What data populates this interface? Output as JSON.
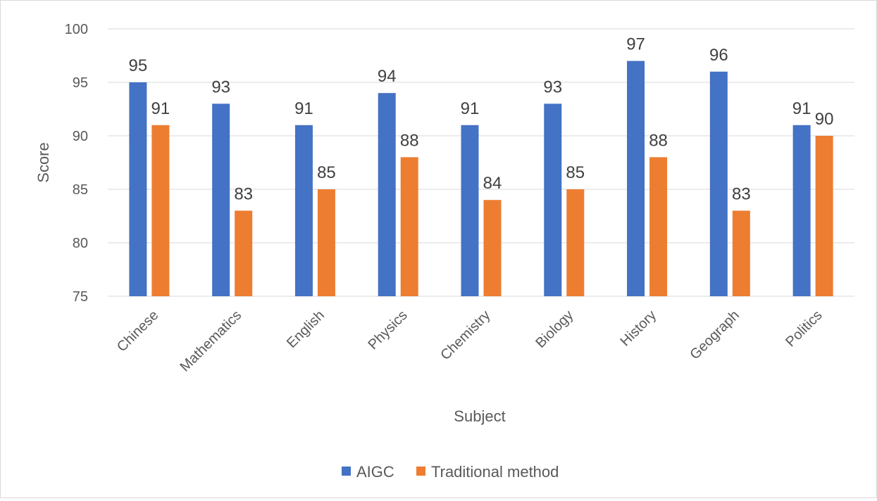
{
  "chart_data": {
    "type": "bar",
    "title": "",
    "xlabel": "Subject",
    "ylabel": "Score",
    "ylim": [
      75,
      100
    ],
    "yticks": [
      75,
      80,
      85,
      90,
      95,
      100
    ],
    "grid": true,
    "legend_position": "bottom",
    "categories": [
      "Chinese",
      "Mathematics",
      "English",
      "Physics",
      "Chemistry",
      "Biology",
      "History",
      "Geograph",
      "Politics"
    ],
    "series": [
      {
        "name": "AIGC",
        "color": "#4472c4",
        "values": [
          95,
          93,
          91,
          94,
          91,
          93,
          97,
          96,
          91
        ]
      },
      {
        "name": "Traditional method",
        "color": "#ed7d31",
        "values": [
          91,
          83,
          85,
          88,
          84,
          85,
          88,
          83,
          90
        ]
      }
    ]
  }
}
